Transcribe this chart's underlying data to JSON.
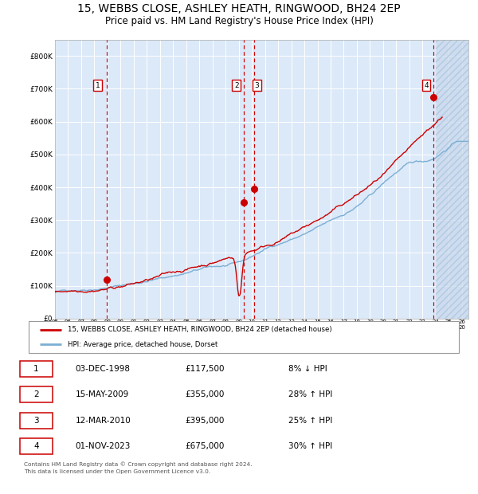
{
  "title": "15, WEBBS CLOSE, ASHLEY HEATH, RINGWOOD, BH24 2EP",
  "subtitle": "Price paid vs. HM Land Registry's House Price Index (HPI)",
  "title_fontsize": 10,
  "subtitle_fontsize": 8.5,
  "xlim": [
    1995.0,
    2026.5
  ],
  "ylim": [
    0,
    850000
  ],
  "yticks": [
    0,
    100000,
    200000,
    300000,
    400000,
    500000,
    600000,
    700000,
    800000
  ],
  "ytick_labels": [
    "£0",
    "£100K",
    "£200K",
    "£300K",
    "£400K",
    "£500K",
    "£600K",
    "£700K",
    "£800K"
  ],
  "xtick_years": [
    1995,
    1996,
    1997,
    1998,
    1999,
    2000,
    2001,
    2002,
    2003,
    2004,
    2005,
    2006,
    2007,
    2008,
    2009,
    2010,
    2011,
    2012,
    2013,
    2014,
    2015,
    2016,
    2017,
    2018,
    2019,
    2020,
    2021,
    2022,
    2023,
    2024,
    2025,
    2026
  ],
  "background_color": "#dce9f8",
  "grid_color": "#ffffff",
  "hpi_color": "#7bafd4",
  "price_color": "#cc0000",
  "dashed_line_color": "#cc0000",
  "hatch_color": "#b8cfe8",
  "transactions": [
    {
      "date": 1998.92,
      "price": 117500,
      "label": "1"
    },
    {
      "date": 2009.37,
      "price": 355000,
      "label": "2"
    },
    {
      "date": 2010.19,
      "price": 395000,
      "label": "3"
    },
    {
      "date": 2023.83,
      "price": 675000,
      "label": "4"
    }
  ],
  "legend_entries": [
    "15, WEBBS CLOSE, ASHLEY HEATH, RINGWOOD, BH24 2EP (detached house)",
    "HPI: Average price, detached house, Dorset"
  ],
  "table_rows": [
    {
      "num": "1",
      "date": "03-DEC-1998",
      "price": "£117,500",
      "change": "8% ↓ HPI"
    },
    {
      "num": "2",
      "date": "15-MAY-2009",
      "price": "£355,000",
      "change": "28% ↑ HPI"
    },
    {
      "num": "3",
      "date": "12-MAR-2010",
      "price": "£395,000",
      "change": "25% ↑ HPI"
    },
    {
      "num": "4",
      "date": "01-NOV-2023",
      "price": "£675,000",
      "change": "30% ↑ HPI"
    }
  ],
  "footnote": "Contains HM Land Registry data © Crown copyright and database right 2024.\nThis data is licensed under the Open Government Licence v3.0.",
  "future_hatch_start": 2024.0
}
